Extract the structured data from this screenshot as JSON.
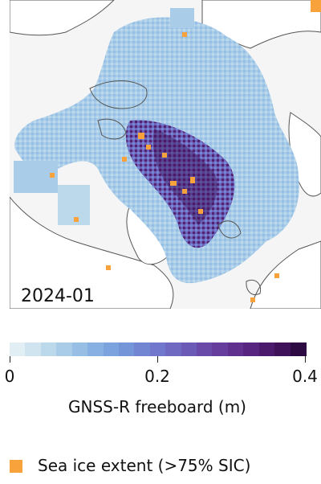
{
  "map": {
    "date_label": "2024-01",
    "land_color": "#ffffff",
    "nodata_color": "#f5f5f5",
    "coast_color": "#555555",
    "extent_color": "#f7a23b"
  },
  "colorbar": {
    "label": "GNSS-R freeboard (m)",
    "ticks": [
      "0",
      "0.2",
      "0.4"
    ],
    "range": [
      0,
      0.4
    ],
    "colors": [
      "#e1eef3",
      "#cfe4ef",
      "#bcd9ec",
      "#a9cde9",
      "#97bfe6",
      "#86b1e2",
      "#7ba3de",
      "#7595d9",
      "#7185d3",
      "#7177cc",
      "#6f69c2",
      "#6c5ab7",
      "#6a4aa9",
      "#663d9d",
      "#60308f",
      "#57257f",
      "#4b1a6c",
      "#3e1159",
      "#2d0a42"
    ]
  },
  "legend": {
    "label": "Sea ice extent (>75% SIC)",
    "swatch_color": "#f7a23b"
  }
}
